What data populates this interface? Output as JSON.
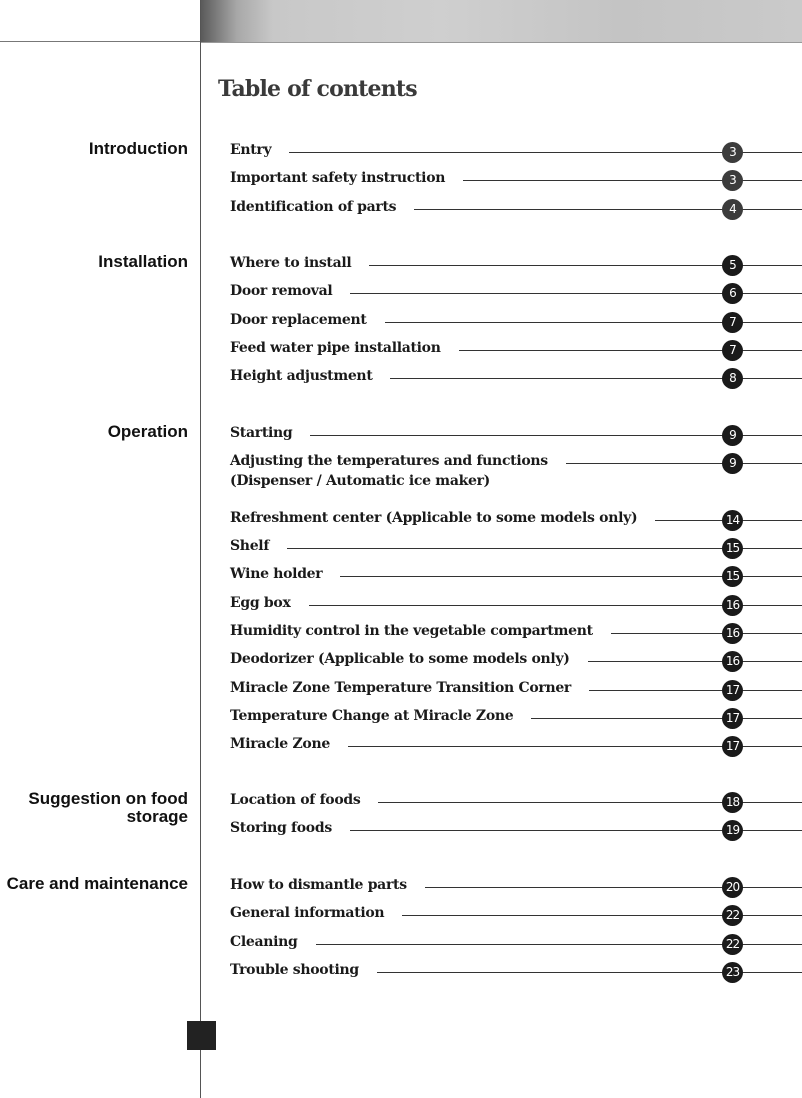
{
  "title": "Table of contents",
  "sections": [
    {
      "label": "Introduction",
      "items": [
        {
          "text": "Entry",
          "page": "3"
        },
        {
          "text": "Important safety instruction",
          "page": "3"
        },
        {
          "text": "Identification of parts",
          "page": "4"
        }
      ]
    },
    {
      "label": "Installation",
      "items": [
        {
          "text": "Where to install",
          "page": "5"
        },
        {
          "text": "Door removal",
          "page": "6"
        },
        {
          "text": "Door replacement",
          "page": "7"
        },
        {
          "text": "Feed water pipe installation",
          "page": "7"
        },
        {
          "text": "Height adjustment",
          "page": "8"
        }
      ]
    },
    {
      "label": "Operation",
      "items": [
        {
          "text": "Starting",
          "page": "9"
        },
        {
          "text": "Adjusting the temperatures and functions",
          "text2": "(Dispenser / Automatic ice maker)",
          "page": "9"
        },
        {
          "text": "Refreshment center (Applicable to some models only)",
          "page": "14"
        },
        {
          "text": "Shelf",
          "page": "15"
        },
        {
          "text": "Wine holder",
          "page": "15"
        },
        {
          "text": "Egg box",
          "page": "16"
        },
        {
          "text": "Humidity control in the vegetable compartment",
          "page": "16"
        },
        {
          "text": "Deodorizer (Applicable to some models only)",
          "page": "16"
        },
        {
          "text": "Miracle Zone Temperature Transition Corner",
          "page": "17"
        },
        {
          "text": "Temperature Change at Miracle Zone",
          "page": "17"
        },
        {
          "text": "Miracle Zone",
          "page": "17"
        }
      ]
    },
    {
      "label": "Suggestion on food storage",
      "items": [
        {
          "text": "Location of foods",
          "page": "18"
        },
        {
          "text": "Storing foods",
          "page": "19"
        }
      ]
    },
    {
      "label": "Care and maintenance",
      "items": [
        {
          "text": "How to dismantle parts",
          "page": "20"
        },
        {
          "text": "General information",
          "page": "22"
        },
        {
          "text": "Cleaning",
          "page": "22"
        },
        {
          "text": "Trouble shooting",
          "page": "23"
        }
      ]
    }
  ]
}
